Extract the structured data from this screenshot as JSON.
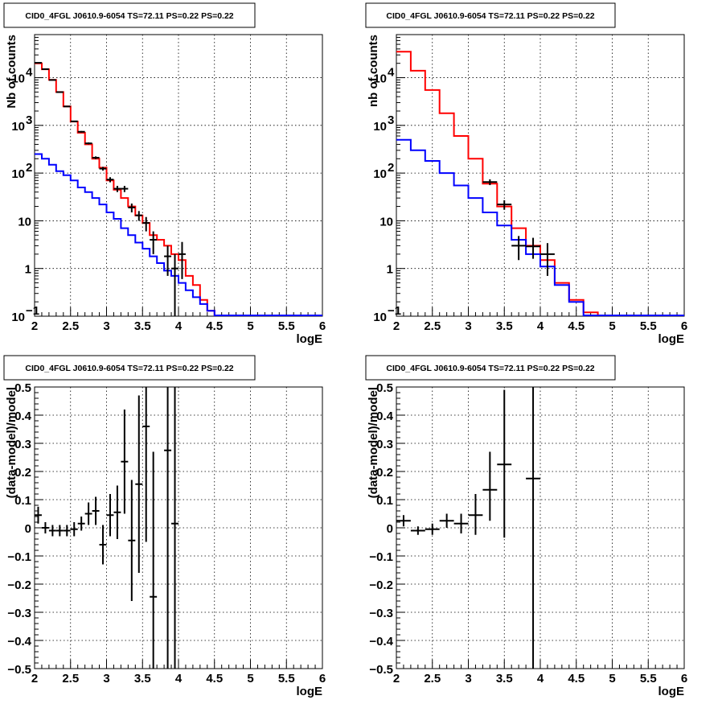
{
  "chart_data": [
    {
      "type": "histogram",
      "title": "CID0_4FGL J0610.9-6054 TS=72.11 PS=0.22 PS=0.22",
      "xlabel": "logE",
      "ylabel": "Nb of counts",
      "xlim": [
        2,
        6
      ],
      "ylim": [
        0.1,
        80000
      ],
      "yscale": "log",
      "grid": true,
      "xticks": [
        "2",
        "2.5",
        "3",
        "3.5",
        "4",
        "4.5",
        "5",
        "5.5",
        "6"
      ],
      "yticks": [
        {
          "v": 0.1,
          "main": "10",
          "exp": "−1"
        },
        {
          "v": 1,
          "main": "1",
          "exp": ""
        },
        {
          "v": 10,
          "main": "10",
          "exp": ""
        },
        {
          "v": 100,
          "main": "10",
          "exp": "2"
        },
        {
          "v": 1000,
          "main": "10",
          "exp": "3"
        },
        {
          "v": 10000,
          "main": "10",
          "exp": "4"
        }
      ],
      "bin_edges": [
        2,
        2.1,
        2.2,
        2.3,
        2.4,
        2.5,
        2.6,
        2.7,
        2.8,
        2.9,
        3,
        3.1,
        3.2,
        3.3,
        3.4,
        3.5,
        3.6,
        3.7,
        3.8,
        3.9,
        4,
        4.1,
        4.2,
        4.3,
        4.4,
        4.5,
        4.6,
        4.7,
        4.8,
        4.9,
        5,
        5.1,
        5.2,
        5.3,
        5.4,
        5.5,
        5.6,
        5.7,
        5.8,
        5.9,
        6
      ],
      "series": [
        {
          "color": "#ff0000",
          "values": [
            20000,
            15000,
            9000,
            5000,
            2500,
            1200,
            700,
            400,
            200,
            130,
            70,
            45,
            30,
            20,
            13,
            9,
            5,
            4,
            3,
            2,
            1.5,
            0.7,
            0.45,
            0.22,
            0.13,
            0.1,
            0.1,
            0.1,
            0.1,
            0.1,
            0.1,
            0.1,
            0.1,
            0.1,
            0.1,
            0.1,
            0.1,
            0.1,
            0.1,
            0.1
          ]
        },
        {
          "color": "#0000ff",
          "values": [
            250,
            200,
            150,
            110,
            90,
            70,
            50,
            40,
            30,
            22,
            15,
            11,
            7,
            5,
            3.5,
            2.6,
            1.8,
            1.3,
            0.9,
            0.7,
            0.5,
            0.35,
            0.25,
            0.18,
            0.13,
            0.1,
            0.1,
            0.1,
            0.1,
            0.1,
            0.1,
            0.1,
            0.1,
            0.1,
            0.1,
            0.1,
            0.1,
            0.1,
            0.1,
            0.1
          ]
        }
      ],
      "points": [
        {
          "x": 2.05,
          "y": 20500,
          "lo": 20360,
          "hi": 20640
        },
        {
          "x": 2.15,
          "y": 15100,
          "lo": 14980,
          "hi": 15220
        },
        {
          "x": 2.25,
          "y": 8950,
          "lo": 8860,
          "hi": 9040
        },
        {
          "x": 2.35,
          "y": 4980,
          "lo": 4910,
          "hi": 5050
        },
        {
          "x": 2.45,
          "y": 2490,
          "lo": 2440,
          "hi": 2540
        },
        {
          "x": 2.55,
          "y": 1215,
          "lo": 1180,
          "hi": 1250
        },
        {
          "x": 2.65,
          "y": 735,
          "lo": 708,
          "hi": 762
        },
        {
          "x": 2.75,
          "y": 420,
          "lo": 400,
          "hi": 440
        },
        {
          "x": 2.85,
          "y": 210,
          "lo": 196,
          "hi": 224
        },
        {
          "x": 2.95,
          "y": 124,
          "lo": 113,
          "hi": 135
        },
        {
          "x": 3.05,
          "y": 73,
          "lo": 64,
          "hi": 82
        },
        {
          "x": 3.15,
          "y": 47,
          "lo": 40,
          "hi": 54
        },
        {
          "x": 3.25,
          "y": 47,
          "lo": 40,
          "hi": 54
        },
        {
          "x": 3.35,
          "y": 19,
          "lo": 15,
          "hi": 23
        },
        {
          "x": 3.45,
          "y": 13,
          "lo": 10,
          "hi": 16
        },
        {
          "x": 3.55,
          "y": 9,
          "lo": 6,
          "hi": 12
        },
        {
          "x": 3.65,
          "y": 4,
          "lo": 2,
          "hi": 6
        },
        {
          "x": 3.85,
          "y": 1.8,
          "lo": 0.7,
          "hi": 3
        },
        {
          "x": 3.95,
          "y": 1,
          "lo": 0.1,
          "hi": 2
        },
        {
          "x": 4.05,
          "y": 2,
          "lo": 0.6,
          "hi": 3.6
        }
      ]
    },
    {
      "type": "histogram",
      "title": "CID0_4FGL J0610.9-6054 TS=72.11 PS=0.22 PS=0.22",
      "xlabel": "logE",
      "ylabel": "nb of counts",
      "xlim": [
        2,
        6
      ],
      "ylim": [
        0.1,
        80000
      ],
      "yscale": "log",
      "grid": true,
      "xticks": [
        "2",
        "2.5",
        "3",
        "3.5",
        "4",
        "4.5",
        "5",
        "5.5",
        "6"
      ],
      "yticks": [
        {
          "v": 0.1,
          "main": "10",
          "exp": "−1"
        },
        {
          "v": 1,
          "main": "1",
          "exp": ""
        },
        {
          "v": 10,
          "main": "10",
          "exp": ""
        },
        {
          "v": 100,
          "main": "10",
          "exp": "2"
        },
        {
          "v": 1000,
          "main": "10",
          "exp": "3"
        },
        {
          "v": 10000,
          "main": "10",
          "exp": "4"
        }
      ],
      "bin_edges": [
        2,
        2.2,
        2.4,
        2.6,
        2.8,
        3,
        3.2,
        3.4,
        3.6,
        3.8,
        4,
        4.2,
        4.4,
        4.6,
        4.8,
        5,
        5.2,
        5.4,
        5.6,
        5.8,
        6
      ],
      "series": [
        {
          "color": "#ff0000",
          "values": [
            35000,
            14000,
            5500,
            1800,
            600,
            200,
            60,
            20,
            7,
            3,
            1.5,
            0.5,
            0.22,
            0.12,
            0.1,
            0.1,
            0.1,
            0.1,
            0.1,
            0.1
          ]
        },
        {
          "color": "#0000ff",
          "values": [
            500,
            300,
            180,
            100,
            55,
            30,
            15,
            8,
            4,
            2,
            1.1,
            0.45,
            0.2,
            0.1,
            0.1,
            0.1,
            0.1,
            0.1,
            0.1,
            0.1
          ]
        }
      ],
      "points": [
        {
          "x": 3.3,
          "y": 65,
          "lo": 56,
          "hi": 74
        },
        {
          "x": 3.5,
          "y": 22,
          "lo": 17,
          "hi": 27
        },
        {
          "x": 3.7,
          "y": 3,
          "lo": 1.5,
          "hi": 4.8
        },
        {
          "x": 3.9,
          "y": 2.9,
          "lo": 1.6,
          "hi": 4.4
        },
        {
          "x": 4.1,
          "y": 2,
          "lo": 0.7,
          "hi": 3.4
        }
      ]
    },
    {
      "type": "scatter",
      "title": "CID0_4FGL J0610.9-6054 TS=72.11 PS=0.22 PS=0.22",
      "xlabel": "logE",
      "ylabel": "(data-model)/model",
      "xlim": [
        2,
        6
      ],
      "ylim": [
        -0.5,
        0.5
      ],
      "yscale": "linear",
      "grid": true,
      "xticks": [
        "2",
        "2.5",
        "3",
        "3.5",
        "4",
        "4.5",
        "5",
        "5.5",
        "6"
      ],
      "yticks": [
        {
          "v": -0.5,
          "main": "−0.5",
          "exp": ""
        },
        {
          "v": -0.4,
          "main": "−0.4",
          "exp": ""
        },
        {
          "v": -0.3,
          "main": "−0.3",
          "exp": ""
        },
        {
          "v": -0.2,
          "main": "−0.2",
          "exp": ""
        },
        {
          "v": -0.1,
          "main": "−0.1",
          "exp": ""
        },
        {
          "v": 0,
          "main": "0",
          "exp": ""
        },
        {
          "v": 0.1,
          "main": "0.1",
          "exp": ""
        },
        {
          "v": 0.2,
          "main": "0.2",
          "exp": ""
        },
        {
          "v": 0.3,
          "main": "0.3",
          "exp": ""
        },
        {
          "v": 0.4,
          "main": "0.4",
          "exp": ""
        },
        {
          "v": 0.5,
          "main": "0.5",
          "exp": ""
        }
      ],
      "xhalf": 0.05,
      "points": [
        {
          "x": 2.05,
          "y": 0.045,
          "lo": 0.015,
          "hi": 0.075
        },
        {
          "x": 2.15,
          "y": 0.0,
          "lo": -0.02,
          "hi": 0.02
        },
        {
          "x": 2.25,
          "y": -0.01,
          "lo": -0.03,
          "hi": 0.01
        },
        {
          "x": 2.35,
          "y": -0.01,
          "lo": -0.03,
          "hi": 0.01
        },
        {
          "x": 2.45,
          "y": -0.01,
          "lo": -0.03,
          "hi": 0.01
        },
        {
          "x": 2.55,
          "y": -0.005,
          "lo": -0.03,
          "hi": 0.02
        },
        {
          "x": 2.65,
          "y": 0.015,
          "lo": -0.01,
          "hi": 0.04
        },
        {
          "x": 2.75,
          "y": 0.05,
          "lo": 0.01,
          "hi": 0.09
        },
        {
          "x": 2.85,
          "y": 0.06,
          "lo": 0.01,
          "hi": 0.11
        },
        {
          "x": 2.95,
          "y": -0.06,
          "lo": -0.13,
          "hi": 0.01
        },
        {
          "x": 3.05,
          "y": 0.045,
          "lo": -0.03,
          "hi": 0.12
        },
        {
          "x": 3.15,
          "y": 0.055,
          "lo": -0.04,
          "hi": 0.15
        },
        {
          "x": 3.25,
          "y": 0.235,
          "lo": 0.05,
          "hi": 0.42
        },
        {
          "x": 3.35,
          "y": -0.045,
          "lo": -0.26,
          "hi": 0.17
        },
        {
          "x": 3.45,
          "y": 0.155,
          "lo": -0.16,
          "hi": 0.47
        },
        {
          "x": 3.55,
          "y": 0.36,
          "lo": -0.05,
          "hi": 0.5
        },
        {
          "x": 3.65,
          "y": -0.245,
          "lo": -0.5,
          "hi": 0.27
        },
        {
          "x": 3.85,
          "y": 0.275,
          "lo": -0.5,
          "hi": 0.5
        },
        {
          "x": 3.95,
          "y": 0.015,
          "lo": -0.5,
          "hi": 0.5
        }
      ]
    },
    {
      "type": "scatter",
      "title": "CID0_4FGL J0610.9-6054 TS=72.11 PS=0.22 PS=0.22",
      "xlabel": "logE",
      "ylabel": "(data-model)/model",
      "xlim": [
        2,
        6
      ],
      "ylim": [
        -0.5,
        0.5
      ],
      "yscale": "linear",
      "grid": true,
      "xticks": [
        "2",
        "2.5",
        "3",
        "3.5",
        "4",
        "4.5",
        "5",
        "5.5",
        "6"
      ],
      "yticks": [
        {
          "v": -0.5,
          "main": "−0.5",
          "exp": ""
        },
        {
          "v": -0.4,
          "main": "−0.4",
          "exp": ""
        },
        {
          "v": -0.3,
          "main": "−0.3",
          "exp": ""
        },
        {
          "v": -0.2,
          "main": "−0.2",
          "exp": ""
        },
        {
          "v": -0.1,
          "main": "−0.1",
          "exp": ""
        },
        {
          "v": 0,
          "main": "0",
          "exp": ""
        },
        {
          "v": 0.1,
          "main": "0.1",
          "exp": ""
        },
        {
          "v": 0.2,
          "main": "0.2",
          "exp": ""
        },
        {
          "v": 0.3,
          "main": "0.3",
          "exp": ""
        },
        {
          "v": 0.4,
          "main": "0.4",
          "exp": ""
        },
        {
          "v": 0.5,
          "main": "0.5",
          "exp": ""
        }
      ],
      "xhalf": 0.1,
      "points": [
        {
          "x": 2.1,
          "y": 0.025,
          "lo": 0.005,
          "hi": 0.045
        },
        {
          "x": 2.3,
          "y": -0.01,
          "lo": -0.025,
          "hi": 0.005
        },
        {
          "x": 2.5,
          "y": -0.005,
          "lo": -0.025,
          "hi": 0.015
        },
        {
          "x": 2.7,
          "y": 0.025,
          "lo": 0.0,
          "hi": 0.05
        },
        {
          "x": 2.9,
          "y": 0.015,
          "lo": -0.02,
          "hi": 0.05
        },
        {
          "x": 3.1,
          "y": 0.045,
          "lo": -0.025,
          "hi": 0.12
        },
        {
          "x": 3.3,
          "y": 0.135,
          "lo": 0.025,
          "hi": 0.27
        },
        {
          "x": 3.5,
          "y": 0.225,
          "lo": -0.035,
          "hi": 0.49
        },
        {
          "x": 3.9,
          "y": 0.175,
          "lo": -0.5,
          "hi": 0.5
        }
      ]
    }
  ]
}
